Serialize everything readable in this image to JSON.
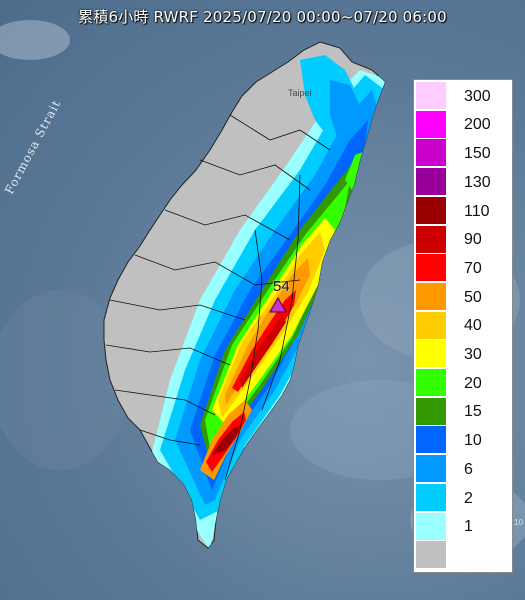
{
  "title": "累積6小時 RWRF 2025/07/20 00:00~07/20 06:00",
  "sea_label": "Formosa Strait",
  "city_label": "Taipei",
  "edge_label": "10",
  "max_station": {
    "value": "54",
    "marker_color": "#cc33cc"
  },
  "legend": [
    {
      "label": "300",
      "color": "#ffccff"
    },
    {
      "label": "200",
      "color": "#ff00ff"
    },
    {
      "label": "150",
      "color": "#cc00cc"
    },
    {
      "label": "130",
      "color": "#990099"
    },
    {
      "label": "110",
      "color": "#990000"
    },
    {
      "label": "90",
      "color": "#cc0000"
    },
    {
      "label": "70",
      "color": "#ff0000"
    },
    {
      "label": "50",
      "color": "#ff9900"
    },
    {
      "label": "40",
      "color": "#ffcc00"
    },
    {
      "label": "30",
      "color": "#ffff00"
    },
    {
      "label": "20",
      "color": "#33ff00"
    },
    {
      "label": "15",
      "color": "#339900"
    },
    {
      "label": "10",
      "color": "#0066ff"
    },
    {
      "label": "6",
      "color": "#0099ff"
    },
    {
      "label": "2",
      "color": "#00ccff"
    },
    {
      "label": "1",
      "color": "#99ffff"
    },
    {
      "label": "",
      "color": "#c0c0c0"
    }
  ]
}
